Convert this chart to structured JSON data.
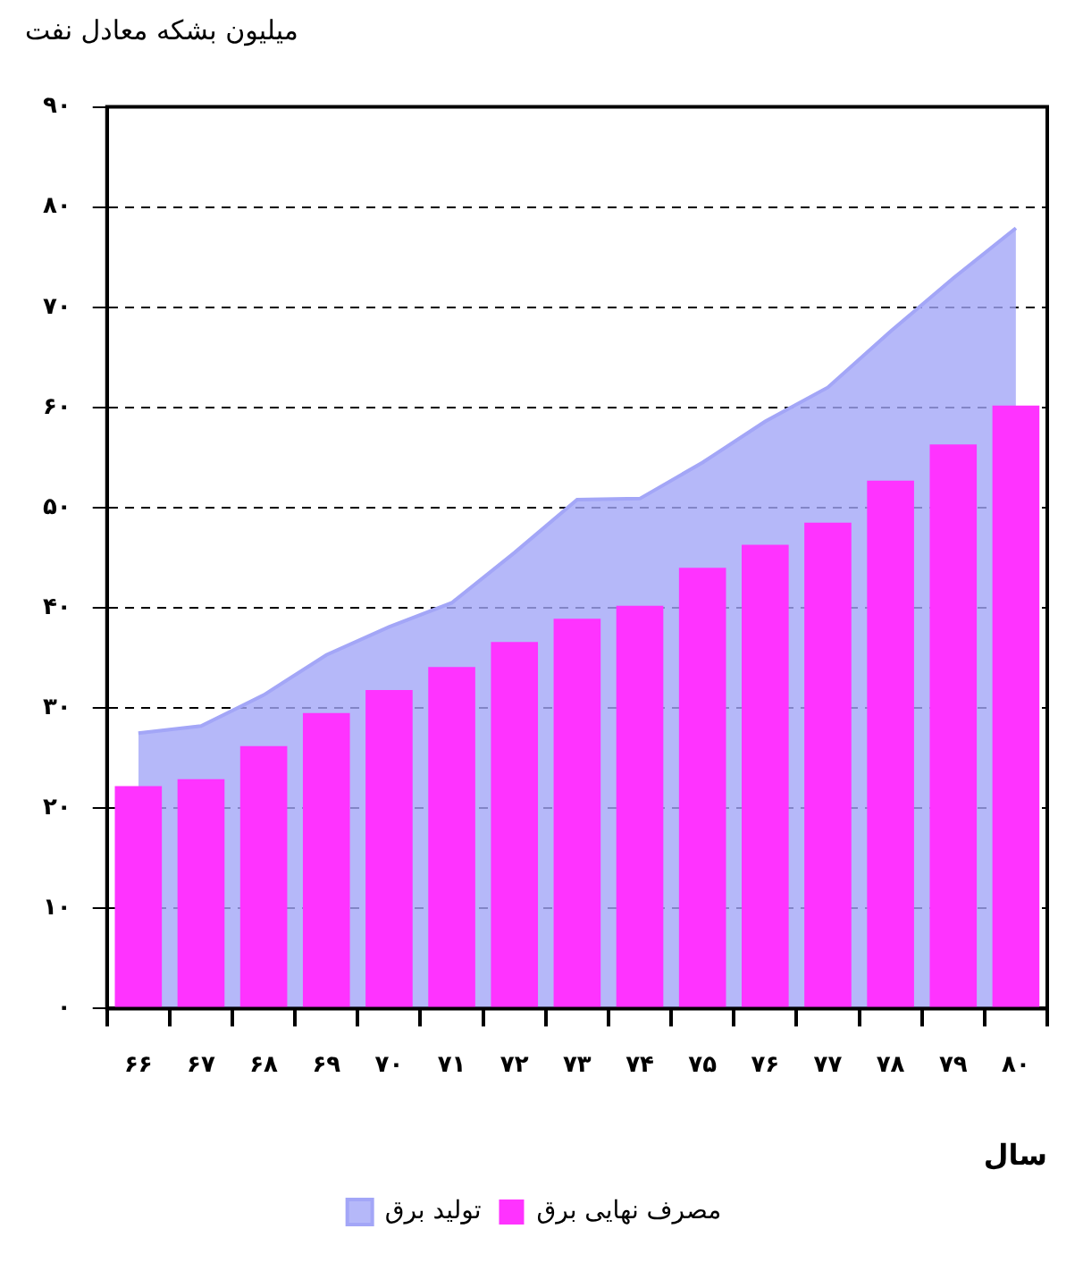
{
  "chart_data": {
    "type": "bar",
    "ylabel": "میلیون بشکه معادل نفت",
    "xlabel": "سال",
    "categories": [
      "۶۶",
      "۶۷",
      "۶۸",
      "۶۹",
      "۷۰",
      "۷۱",
      "۷۲",
      "۷۳",
      "۷۴",
      "۷۵",
      "۷۶",
      "۷۷",
      "۷۸",
      "۷۹",
      "۸۰"
    ],
    "series": [
      {
        "name": "تولید برق",
        "type": "area",
        "color": "#a3a6f7",
        "values": [
          27.5,
          28.2,
          31.3,
          35.3,
          38.1,
          40.5,
          45.5,
          50.8,
          50.9,
          54.5,
          58.6,
          62.0,
          67.6,
          72.9,
          77.9
        ]
      },
      {
        "name": "مصرف نهایی برق",
        "color": "#ff33ff",
        "values": [
          22.2,
          22.9,
          26.2,
          29.5,
          31.8,
          34.1,
          36.6,
          38.9,
          40.2,
          44.0,
          46.3,
          48.5,
          52.7,
          56.3,
          60.2
        ]
      }
    ],
    "ylim": [
      0,
      90
    ],
    "yticks": [
      {
        "value": 0,
        "label": "۰"
      },
      {
        "value": 10,
        "label": "۱۰"
      },
      {
        "value": 20,
        "label": "۲۰"
      },
      {
        "value": 30,
        "label": "۳۰"
      },
      {
        "value": 40,
        "label": "۴۰"
      },
      {
        "value": 50,
        "label": "۵۰"
      },
      {
        "value": 60,
        "label": "۶۰"
      },
      {
        "value": 70,
        "label": "۷۰"
      },
      {
        "value": 80,
        "label": "۸۰"
      },
      {
        "value": 90,
        "label": "۹۰"
      }
    ],
    "grid": "y",
    "legend": "bottom"
  }
}
